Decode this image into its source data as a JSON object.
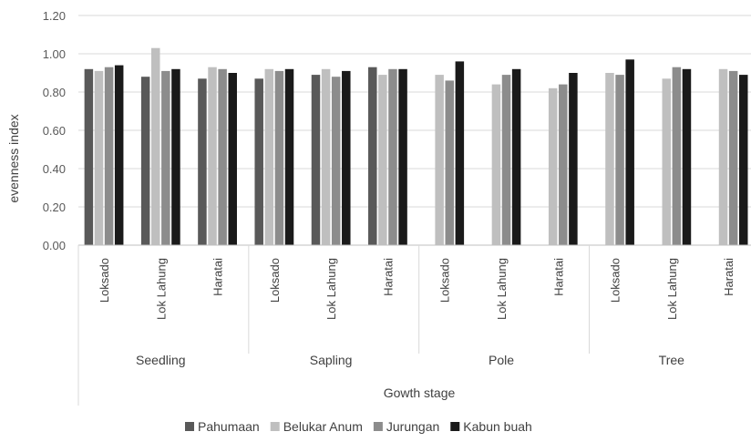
{
  "chart_data": {
    "type": "bar",
    "ylabel": "evenness index",
    "xlabel": "Gowth stage",
    "ylim": [
      0,
      1.2
    ],
    "yticks": [
      "0.00",
      "0.20",
      "0.40",
      "0.60",
      "0.80",
      "1.00",
      "1.20"
    ],
    "grid": true,
    "legend_position": "bottom",
    "groups": [
      "Seedling",
      "Sapling",
      "Pole",
      "Tree"
    ],
    "sites": [
      "Loksado",
      "Lok Lahung",
      "Haratai"
    ],
    "categories": [
      "Seedling / Loksado",
      "Seedling / Lok Lahung",
      "Seedling / Haratai",
      "Sapling / Loksado",
      "Sapling / Lok Lahung",
      "Sapling / Haratai",
      "Pole / Loksado",
      "Pole / Lok Lahung",
      "Pole / Haratai",
      "Tree / Loksado",
      "Tree / Lok Lahung",
      "Tree / Haratai"
    ],
    "series": [
      {
        "name": "Pahumaan",
        "color": "#595959",
        "values": [
          0.92,
          0.88,
          0.87,
          0.87,
          0.89,
          0.93,
          null,
          null,
          null,
          null,
          null,
          null
        ]
      },
      {
        "name": "Belukar Anum",
        "color": "#bfbfbf",
        "values": [
          0.91,
          1.03,
          0.93,
          0.92,
          0.92,
          0.89,
          0.89,
          0.84,
          0.82,
          0.9,
          0.87,
          0.92
        ]
      },
      {
        "name": "Jurungan",
        "color": "#8c8c8c",
        "values": [
          0.93,
          0.91,
          0.92,
          0.91,
          0.88,
          0.92,
          0.86,
          0.89,
          0.84,
          0.89,
          0.93,
          0.91
        ]
      },
      {
        "name": "Kabun buah",
        "color": "#1a1a1a",
        "values": [
          0.94,
          0.92,
          0.9,
          0.92,
          0.91,
          0.92,
          0.96,
          0.92,
          0.9,
          0.97,
          0.92,
          0.89
        ]
      }
    ]
  }
}
